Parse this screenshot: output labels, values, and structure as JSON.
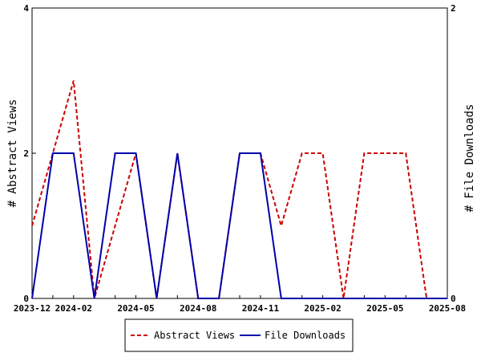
{
  "chart_data": {
    "type": "line",
    "x": [
      "2023-12",
      "2024-01",
      "2024-02",
      "2024-03",
      "2024-04",
      "2024-05",
      "2024-06",
      "2024-07",
      "2024-08",
      "2024-09",
      "2024-10",
      "2024-11",
      "2024-12",
      "2025-01",
      "2025-02",
      "2025-03",
      "2025-04",
      "2025-05",
      "2025-06",
      "2025-07",
      "2025-08"
    ],
    "x_tick_labels": [
      "2023-12",
      "2024-02",
      "2024-05",
      "2024-08",
      "2024-11",
      "2025-02",
      "2025-05",
      "2025-08"
    ],
    "series": [
      {
        "name": "Abstract Views",
        "axis": "left",
        "color": "#cc0000",
        "dash": "dashed",
        "values": [
          1,
          2,
          3,
          0,
          1,
          2,
          0,
          2,
          0,
          0,
          2,
          2,
          1,
          2,
          2,
          0,
          2,
          2,
          2,
          0,
          0
        ]
      },
      {
        "name": "File Downloads",
        "axis": "right",
        "color": "#0000aa",
        "dash": "solid",
        "values": [
          0,
          1,
          1,
          0,
          1,
          1,
          0,
          1,
          0,
          0,
          1,
          1,
          0,
          0,
          0,
          0,
          0,
          0,
          0,
          0,
          0
        ]
      }
    ],
    "ylabel_left": "# Abstract Views",
    "ylabel_right": "# File Downloads",
    "ylim_left": [
      0,
      4
    ],
    "ylim_right": [
      0,
      2
    ],
    "yticks_left": [
      0,
      2,
      4
    ],
    "yticks_right": [
      0,
      2
    ],
    "grid": false,
    "legend_position": "bottom"
  }
}
